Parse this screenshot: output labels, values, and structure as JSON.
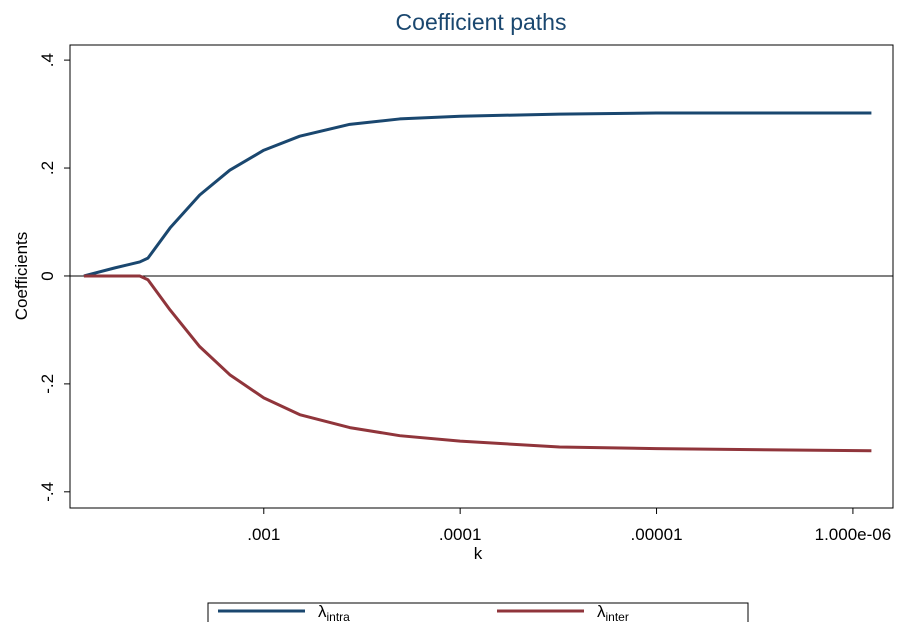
{
  "chart_data": {
    "type": "line",
    "title": "Coefficient paths",
    "x_label": "k",
    "y_label": "Coefficients",
    "x_scale": "log",
    "x": [
      0.00824,
      0.00573,
      0.00428,
      0.00389,
      0.003,
      0.00212,
      0.00149,
      0.001,
      0.000656,
      0.000365,
      0.000203,
      0.0001,
      3.12e-05,
      1e-05,
      8.05e-07
    ],
    "series": [
      {
        "name": "λintra",
        "color": "#1a476f",
        "values": [
          0,
          0.015,
          0.026,
          0.033,
          0.089,
          0.15,
          0.196,
          0.233,
          0.259,
          0.281,
          0.291,
          0.296,
          0.3,
          0.302,
          0.302
        ]
      },
      {
        "name": "λinter",
        "color": "#90353b",
        "values": [
          0,
          0,
          0,
          -0.007,
          -0.063,
          -0.131,
          -0.183,
          -0.226,
          -0.257,
          -0.281,
          -0.296,
          -0.306,
          -0.317,
          -0.32,
          -0.324
        ]
      }
    ],
    "xlim": [
      0.0097,
      6.25e-07
    ],
    "ylim": [
      -0.43,
      0.428
    ],
    "xticks": [
      {
        "value": 0.001,
        "label": ".001"
      },
      {
        "value": 0.0001,
        "label": ".0001"
      },
      {
        "value": 1e-05,
        "label": ".00001"
      },
      {
        "value": 1e-06,
        "label": "1.000e-06"
      }
    ],
    "yticks": [
      {
        "value": -0.4,
        "label": "-.4"
      },
      {
        "value": -0.2,
        "label": "-.2"
      },
      0,
      {
        "value": 0.2,
        "label": ".2"
      },
      {
        "value": 0.4,
        "label": ".4"
      }
    ],
    "legend": "bottom"
  }
}
